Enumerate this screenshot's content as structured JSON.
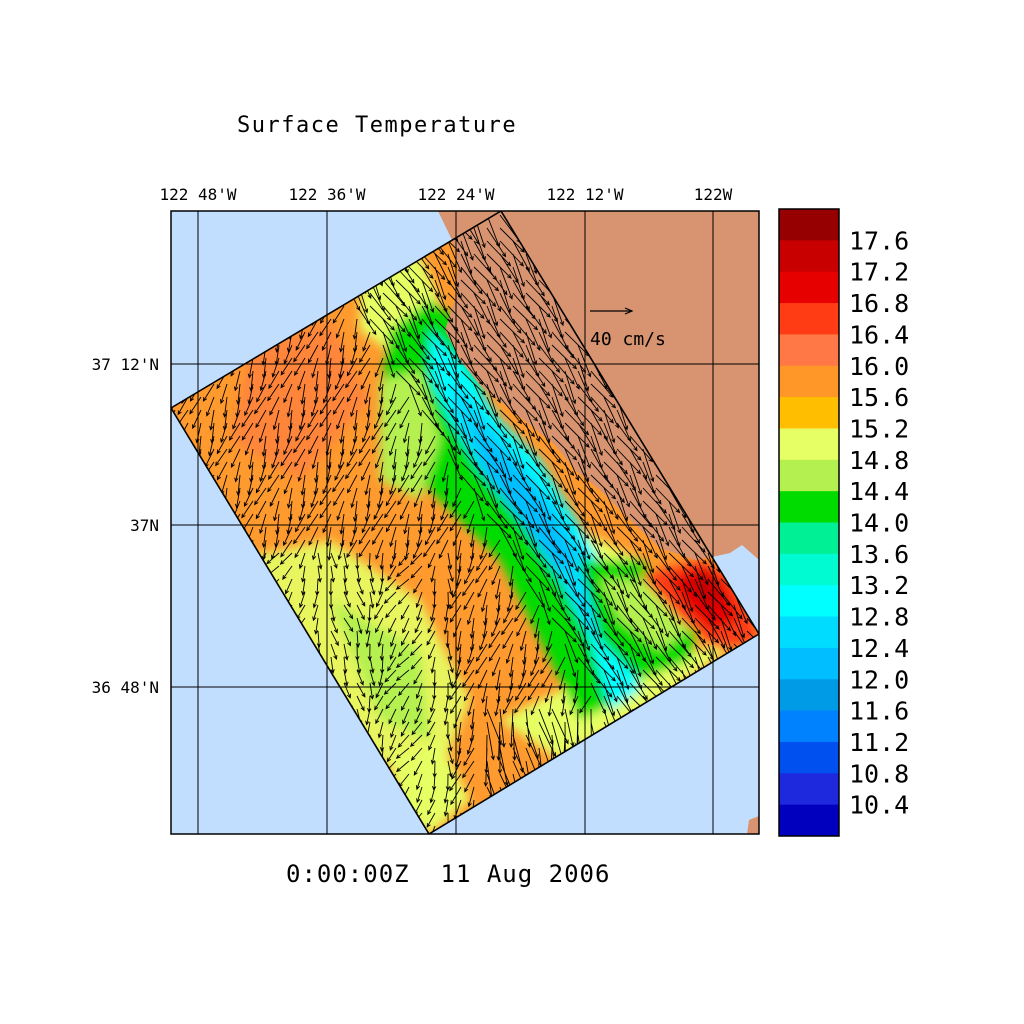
{
  "title": "Surface Temperature",
  "timestamp": "0:00:00Z  11 Aug 2006",
  "lon_labels": [
    "122 48'W",
    "122 36'W",
    "122 24'W",
    "122 12'W",
    "122W"
  ],
  "lat_labels": [
    "37 12'N",
    "37N",
    "36 48'N"
  ],
  "vector_scale_label": "40 cm/s",
  "colorbar": {
    "labels": [
      "17.6",
      "17.2",
      "16.8",
      "16.4",
      "16.0",
      "15.6",
      "15.2",
      "14.8",
      "14.4",
      "14.0",
      "13.6",
      "13.2",
      "12.8",
      "12.4",
      "12.0",
      "11.6",
      "11.2",
      "10.8",
      "10.4"
    ],
    "colors": [
      "#960000",
      "#c80000",
      "#e60000",
      "#ff3c14",
      "#ff7846",
      "#ff9628",
      "#ffbe00",
      "#e6ff64",
      "#b4f050",
      "#00dc00",
      "#00f096",
      "#00fad2",
      "#00ffff",
      "#00dcff",
      "#00beff",
      "#009be6",
      "#0082ff",
      "#0050f0",
      "#1e28dc",
      "#0000be"
    ]
  },
  "colors": {
    "ocean": "#c2deff",
    "land": "#d89470",
    "grid": "#000000"
  }
}
